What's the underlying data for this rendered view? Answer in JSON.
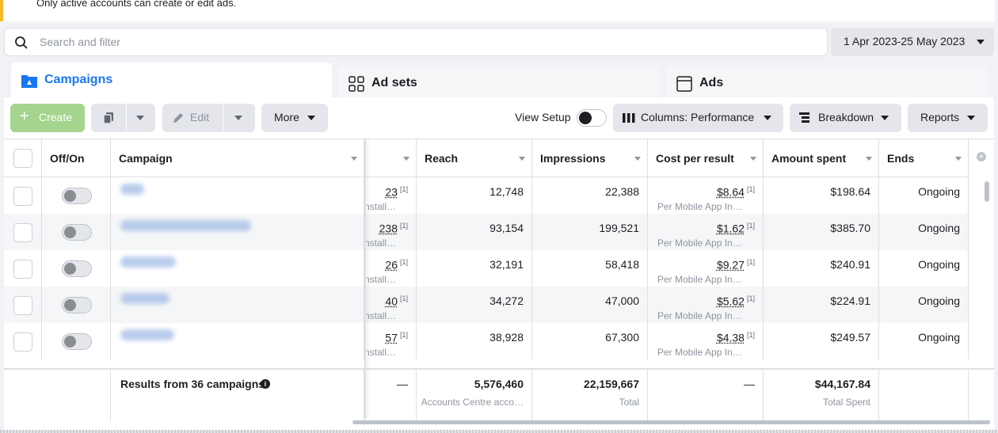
{
  "banner": {
    "text": "Only active accounts can create or edit ads."
  },
  "search": {
    "placeholder": "Search and filter"
  },
  "date_range": {
    "label": "1 Apr 2023-25 May 2023"
  },
  "tabs": [
    {
      "label": "Campaigns",
      "icon": "folder-icon",
      "active": true
    },
    {
      "label": "Ad sets",
      "icon": "grid-icon",
      "active": false
    },
    {
      "label": "Ads",
      "icon": "ad-frame-icon",
      "active": false
    }
  ],
  "toolbar": {
    "create_label": "Create",
    "edit_label": "Edit",
    "more_label": "More",
    "view_setup_label": "View Setup",
    "columns_label": "Columns: Performance",
    "breakdown_label": "Breakdown",
    "reports_label": "Reports"
  },
  "columns": {
    "off_on": "Off/On",
    "campaign": "Campaign",
    "reach": "Reach",
    "impressions": "Impressions",
    "cost_per_result": "Cost per result",
    "amount_spent": "Amount spent",
    "ends": "Ends"
  },
  "rows": [
    {
      "results": "23",
      "results_sub": "nstall…",
      "reach": "12,748",
      "impressions": "22,388",
      "cpr": "$8.64",
      "cpr_sub": "Per Mobile App In…",
      "spent": "$198.64",
      "ends": "Ongoing"
    },
    {
      "results": "238",
      "results_sub": "nstall…",
      "reach": "93,154",
      "impressions": "199,521",
      "cpr": "$1.62",
      "cpr_sub": "Per Mobile App In…",
      "spent": "$385.70",
      "ends": "Ongoing"
    },
    {
      "results": "26",
      "results_sub": "nstall…",
      "reach": "32,191",
      "impressions": "58,418",
      "cpr": "$9.27",
      "cpr_sub": "Per Mobile App In…",
      "spent": "$240.91",
      "ends": "Ongoing"
    },
    {
      "results": "40",
      "results_sub": "nstall…",
      "reach": "34,272",
      "impressions": "47,000",
      "cpr": "$5.62",
      "cpr_sub": "Per Mobile App In…",
      "spent": "$224.91",
      "ends": "Ongoing"
    },
    {
      "results": "57",
      "results_sub": "nstall…",
      "reach": "38,928",
      "impressions": "67,300",
      "cpr": "$4.38",
      "cpr_sub": "Per Mobile App In…",
      "spent": "$249.57",
      "ends": "Ongoing"
    }
  ],
  "footnote_marker": "[1]",
  "footer": {
    "results_label": "Results from 36 campaigns",
    "results_dash": "—",
    "reach": "5,576,460",
    "reach_sub": "Accounts Centre acco…",
    "impressions": "22,159,667",
    "impressions_sub": "Total",
    "cpr_dash": "—",
    "spent": "$44,167.84",
    "spent_sub": "Total Spent"
  },
  "colors": {
    "accent": "#1877f2",
    "create_button": "#a4d48d",
    "banner_stripe": "#f7b928"
  }
}
